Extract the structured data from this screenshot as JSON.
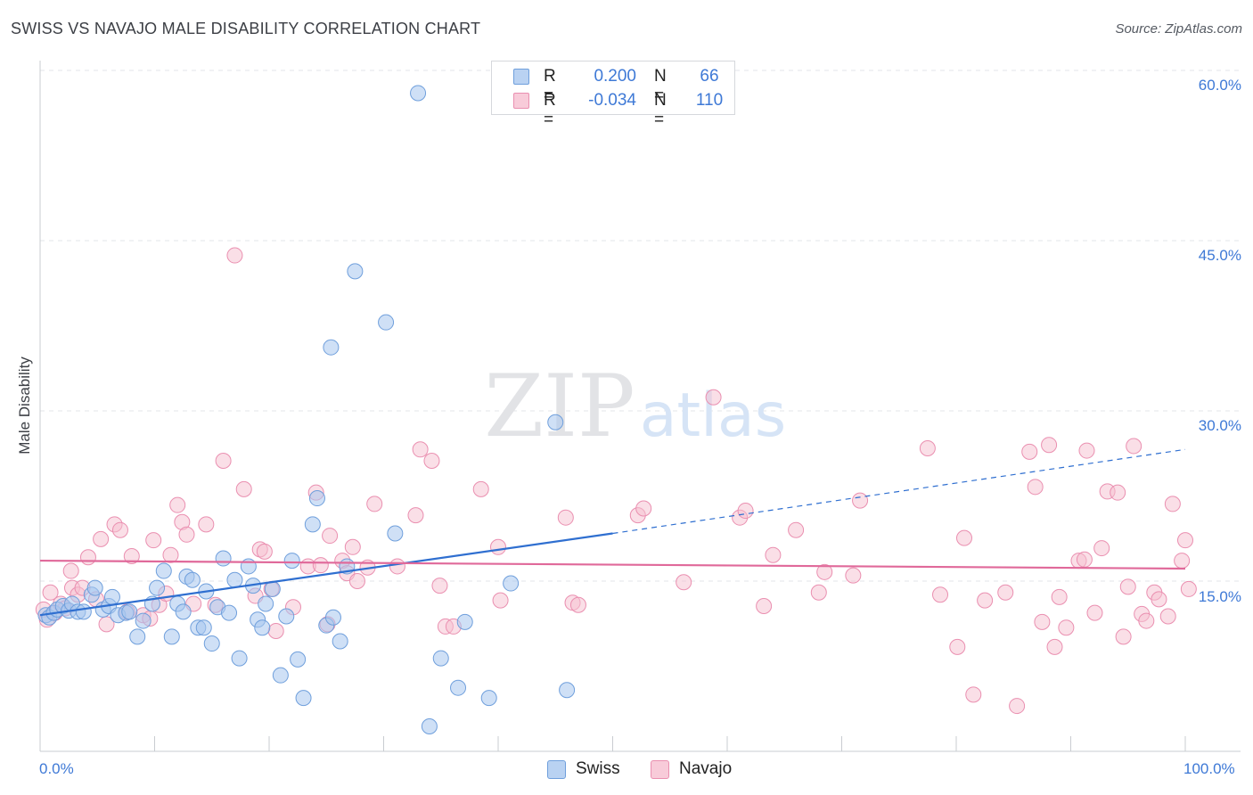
{
  "title": "SWISS VS NAVAJO MALE DISABILITY CORRELATION CHART",
  "source": "Source: ZipAtlas.com",
  "watermark": {
    "zip": "ZIP",
    "atlas": "atlas"
  },
  "legend_top": {
    "rows": [
      {
        "r_label": "R =",
        "r_value": "0.200",
        "n_label": "N =",
        "n_value": "66"
      },
      {
        "r_label": "R =",
        "r_value": "-0.034",
        "n_label": "N =",
        "n_value": "110"
      }
    ]
  },
  "legend_bottom": {
    "items": [
      "Swiss",
      "Navajo"
    ]
  },
  "colors": {
    "swiss_fill": "#a8c6ee",
    "swiss_stroke": "#6f9fdc",
    "swiss_line": "#2f6fd0",
    "navajo_fill": "#f6bfd0",
    "navajo_stroke": "#ea8fb0",
    "navajo_line": "#e0699a",
    "axis_text": "#3e79d6",
    "grid": "#e3e5e8"
  },
  "chart_data": {
    "type": "scatter",
    "title": "SWISS VS NAVAJO MALE DISABILITY CORRELATION CHART",
    "ylabel": "Male Disability",
    "xlabel": "",
    "xlim": [
      0,
      100
    ],
    "ylim": [
      0,
      60
    ],
    "x_tick_labels": [
      "0.0%",
      "100.0%"
    ],
    "y_tick_labels": [
      "15.0%",
      "30.0%",
      "45.0%",
      "60.0%"
    ],
    "y_ticks": [
      15,
      30,
      45,
      60
    ],
    "grid": true,
    "legend": "top-center",
    "series": [
      {
        "name": "Swiss",
        "R": 0.2,
        "N": 66,
        "trend": {
          "x0": 0,
          "y0": 12.0,
          "x1": 50,
          "y1": 19.2,
          "dashed_to": 100,
          "dashed_y": 26.6
        },
        "points": [
          [
            0.5,
            12.0
          ],
          [
            0.8,
            11.8
          ],
          [
            1.2,
            12.2
          ],
          [
            1.5,
            12.5
          ],
          [
            2.0,
            12.8
          ],
          [
            2.5,
            12.4
          ],
          [
            2.8,
            13.0
          ],
          [
            3.3,
            12.3
          ],
          [
            3.8,
            12.3
          ],
          [
            4.5,
            13.8
          ],
          [
            4.8,
            14.4
          ],
          [
            5.5,
            12.5
          ],
          [
            6.0,
            12.8
          ],
          [
            6.3,
            13.6
          ],
          [
            6.8,
            12.0
          ],
          [
            7.5,
            12.2
          ],
          [
            7.8,
            12.3
          ],
          [
            8.5,
            10.1
          ],
          [
            9.0,
            11.5
          ],
          [
            9.8,
            13.0
          ],
          [
            10.2,
            14.4
          ],
          [
            10.8,
            15.9
          ],
          [
            11.5,
            10.1
          ],
          [
            12.0,
            13.0
          ],
          [
            12.5,
            12.3
          ],
          [
            12.8,
            15.4
          ],
          [
            13.3,
            15.1
          ],
          [
            13.8,
            10.9
          ],
          [
            14.3,
            10.9
          ],
          [
            14.5,
            14.1
          ],
          [
            15.0,
            9.5
          ],
          [
            15.5,
            12.7
          ],
          [
            16.0,
            17.0
          ],
          [
            16.5,
            12.2
          ],
          [
            17.0,
            15.1
          ],
          [
            17.4,
            8.2
          ],
          [
            18.2,
            16.3
          ],
          [
            18.6,
            14.6
          ],
          [
            19.0,
            11.6
          ],
          [
            19.4,
            10.9
          ],
          [
            19.7,
            13.0
          ],
          [
            20.3,
            14.3
          ],
          [
            21.0,
            6.7
          ],
          [
            21.5,
            11.9
          ],
          [
            22.0,
            16.8
          ],
          [
            22.5,
            8.1
          ],
          [
            23.0,
            4.7
          ],
          [
            23.8,
            20.0
          ],
          [
            24.2,
            22.3
          ],
          [
            25.0,
            11.1
          ],
          [
            25.6,
            11.8
          ],
          [
            26.2,
            9.7
          ],
          [
            26.8,
            16.3
          ],
          [
            25.4,
            35.6
          ],
          [
            27.5,
            42.3
          ],
          [
            30.2,
            37.8
          ],
          [
            31.0,
            19.2
          ],
          [
            33.0,
            58.0
          ],
          [
            34.0,
            2.2
          ],
          [
            35.0,
            8.2
          ],
          [
            36.5,
            5.6
          ],
          [
            37.1,
            11.4
          ],
          [
            39.2,
            4.7
          ],
          [
            41.1,
            14.8
          ],
          [
            45.0,
            29.0
          ],
          [
            46.0,
            5.4
          ]
        ]
      },
      {
        "name": "Navajo",
        "R": -0.034,
        "N": 110,
        "trend": {
          "x0": 0,
          "y0": 16.8,
          "x1": 100,
          "y1": 16.1
        },
        "points": [
          [
            0.3,
            12.5
          ],
          [
            0.6,
            11.6
          ],
          [
            0.9,
            14.0
          ],
          [
            1.3,
            12.2
          ],
          [
            1.8,
            13.0
          ],
          [
            2.2,
            12.6
          ],
          [
            2.8,
            14.4
          ],
          [
            2.7,
            15.9
          ],
          [
            3.3,
            13.8
          ],
          [
            3.7,
            14.4
          ],
          [
            4.2,
            17.1
          ],
          [
            4.9,
            13.4
          ],
          [
            5.3,
            18.7
          ],
          [
            5.8,
            11.2
          ],
          [
            6.5,
            20.0
          ],
          [
            7.0,
            19.5
          ],
          [
            7.6,
            12.3
          ],
          [
            8.0,
            17.2
          ],
          [
            9.0,
            12.0
          ],
          [
            9.6,
            11.7
          ],
          [
            9.9,
            18.6
          ],
          [
            10.4,
            12.9
          ],
          [
            11.0,
            13.9
          ],
          [
            11.4,
            17.3
          ],
          [
            12.0,
            21.7
          ],
          [
            12.4,
            20.2
          ],
          [
            12.8,
            19.1
          ],
          [
            13.4,
            13.0
          ],
          [
            14.5,
            20.0
          ],
          [
            15.3,
            12.9
          ],
          [
            16.0,
            25.6
          ],
          [
            17.0,
            43.7
          ],
          [
            17.8,
            23.1
          ],
          [
            18.8,
            13.7
          ],
          [
            19.2,
            17.8
          ],
          [
            19.6,
            17.6
          ],
          [
            20.2,
            14.3
          ],
          [
            20.6,
            10.6
          ],
          [
            22.1,
            12.7
          ],
          [
            23.4,
            16.3
          ],
          [
            24.1,
            22.8
          ],
          [
            24.5,
            16.4
          ],
          [
            25.1,
            11.2
          ],
          [
            25.3,
            19.0
          ],
          [
            26.4,
            16.8
          ],
          [
            26.8,
            15.7
          ],
          [
            27.3,
            18.0
          ],
          [
            27.7,
            15.0
          ],
          [
            28.6,
            16.2
          ],
          [
            29.2,
            21.8
          ],
          [
            31.2,
            16.3
          ],
          [
            32.8,
            20.8
          ],
          [
            33.2,
            26.6
          ],
          [
            34.2,
            25.6
          ],
          [
            34.9,
            14.6
          ],
          [
            35.4,
            11.0
          ],
          [
            36.1,
            11.0
          ],
          [
            38.5,
            23.1
          ],
          [
            40.0,
            18.0
          ],
          [
            40.2,
            13.3
          ],
          [
            45.9,
            20.6
          ],
          [
            46.5,
            13.1
          ],
          [
            47.0,
            12.9
          ],
          [
            52.2,
            20.8
          ],
          [
            52.7,
            21.4
          ],
          [
            56.2,
            14.9
          ],
          [
            58.8,
            31.2
          ],
          [
            61.1,
            20.6
          ],
          [
            61.6,
            21.2
          ],
          [
            64.0,
            17.3
          ],
          [
            63.2,
            12.8
          ],
          [
            66.0,
            19.5
          ],
          [
            68.0,
            14.0
          ],
          [
            68.5,
            15.8
          ],
          [
            71.0,
            15.5
          ],
          [
            71.6,
            22.1
          ],
          [
            77.5,
            26.7
          ],
          [
            78.6,
            13.8
          ],
          [
            80.1,
            9.2
          ],
          [
            80.7,
            18.8
          ],
          [
            81.5,
            5.0
          ],
          [
            82.5,
            13.3
          ],
          [
            84.3,
            14.0
          ],
          [
            85.3,
            4.0
          ],
          [
            86.4,
            26.4
          ],
          [
            86.9,
            23.3
          ],
          [
            87.5,
            11.4
          ],
          [
            88.1,
            27.0
          ],
          [
            88.6,
            9.2
          ],
          [
            89.0,
            13.6
          ],
          [
            89.6,
            10.9
          ],
          [
            90.7,
            16.8
          ],
          [
            91.2,
            16.9
          ],
          [
            91.4,
            26.5
          ],
          [
            92.1,
            12.2
          ],
          [
            92.7,
            17.9
          ],
          [
            93.2,
            22.9
          ],
          [
            94.1,
            22.8
          ],
          [
            94.6,
            10.1
          ],
          [
            95.0,
            14.5
          ],
          [
            95.5,
            26.9
          ],
          [
            96.2,
            12.1
          ],
          [
            96.6,
            11.5
          ],
          [
            97.3,
            14.0
          ],
          [
            97.7,
            13.4
          ],
          [
            98.5,
            11.9
          ],
          [
            98.9,
            21.8
          ],
          [
            99.7,
            16.8
          ],
          [
            100.0,
            18.6
          ],
          [
            100.3,
            14.3
          ]
        ]
      }
    ]
  }
}
